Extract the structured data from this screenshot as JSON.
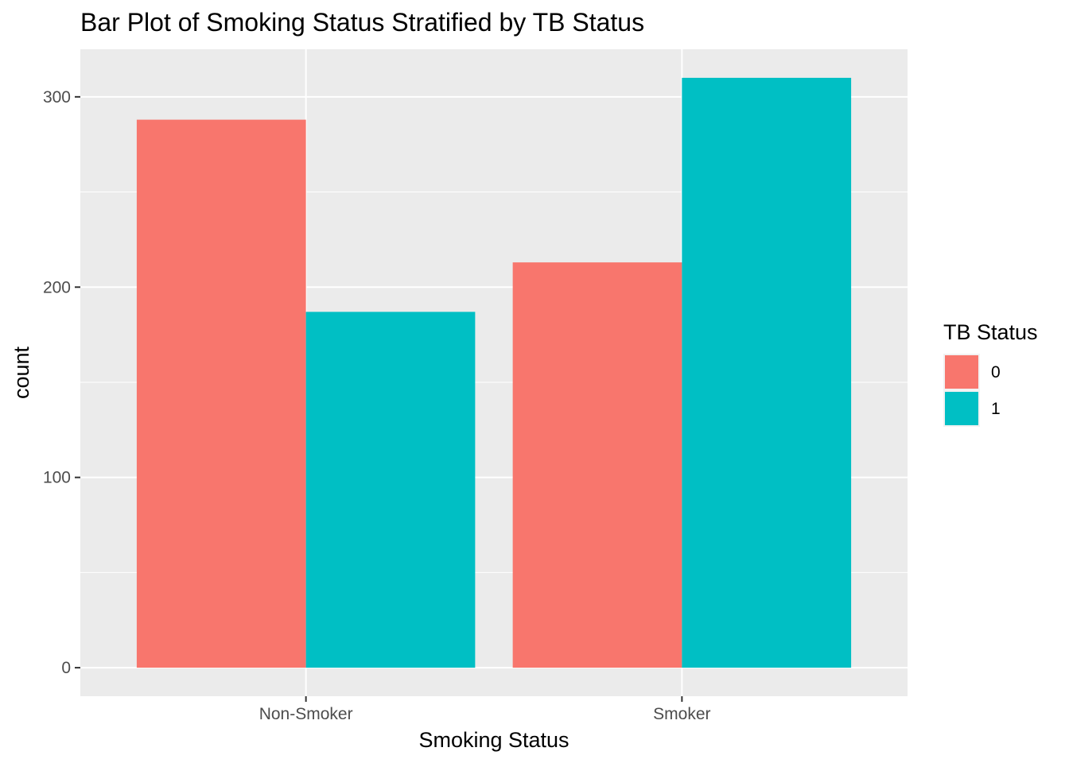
{
  "chart_data": {
    "type": "bar",
    "title": "Bar Plot of Smoking Status Stratified by TB Status",
    "xlabel": "Smoking Status",
    "ylabel": "count",
    "categories": [
      "Non-Smoker",
      "Smoker"
    ],
    "series": [
      {
        "name": "0",
        "values": [
          288,
          213
        ],
        "color": "#F8766D"
      },
      {
        "name": "1",
        "values": [
          187,
          310
        ],
        "color": "#00BFC4"
      }
    ],
    "ylim": [
      -15,
      325
    ],
    "yticks": [
      0,
      100,
      200,
      300
    ],
    "ytick_labels": [
      "0",
      "100",
      "200",
      "300"
    ],
    "grid": true,
    "legend": {
      "title": "TB Status",
      "position": "right"
    },
    "panel_background": "#EBEBEB"
  }
}
